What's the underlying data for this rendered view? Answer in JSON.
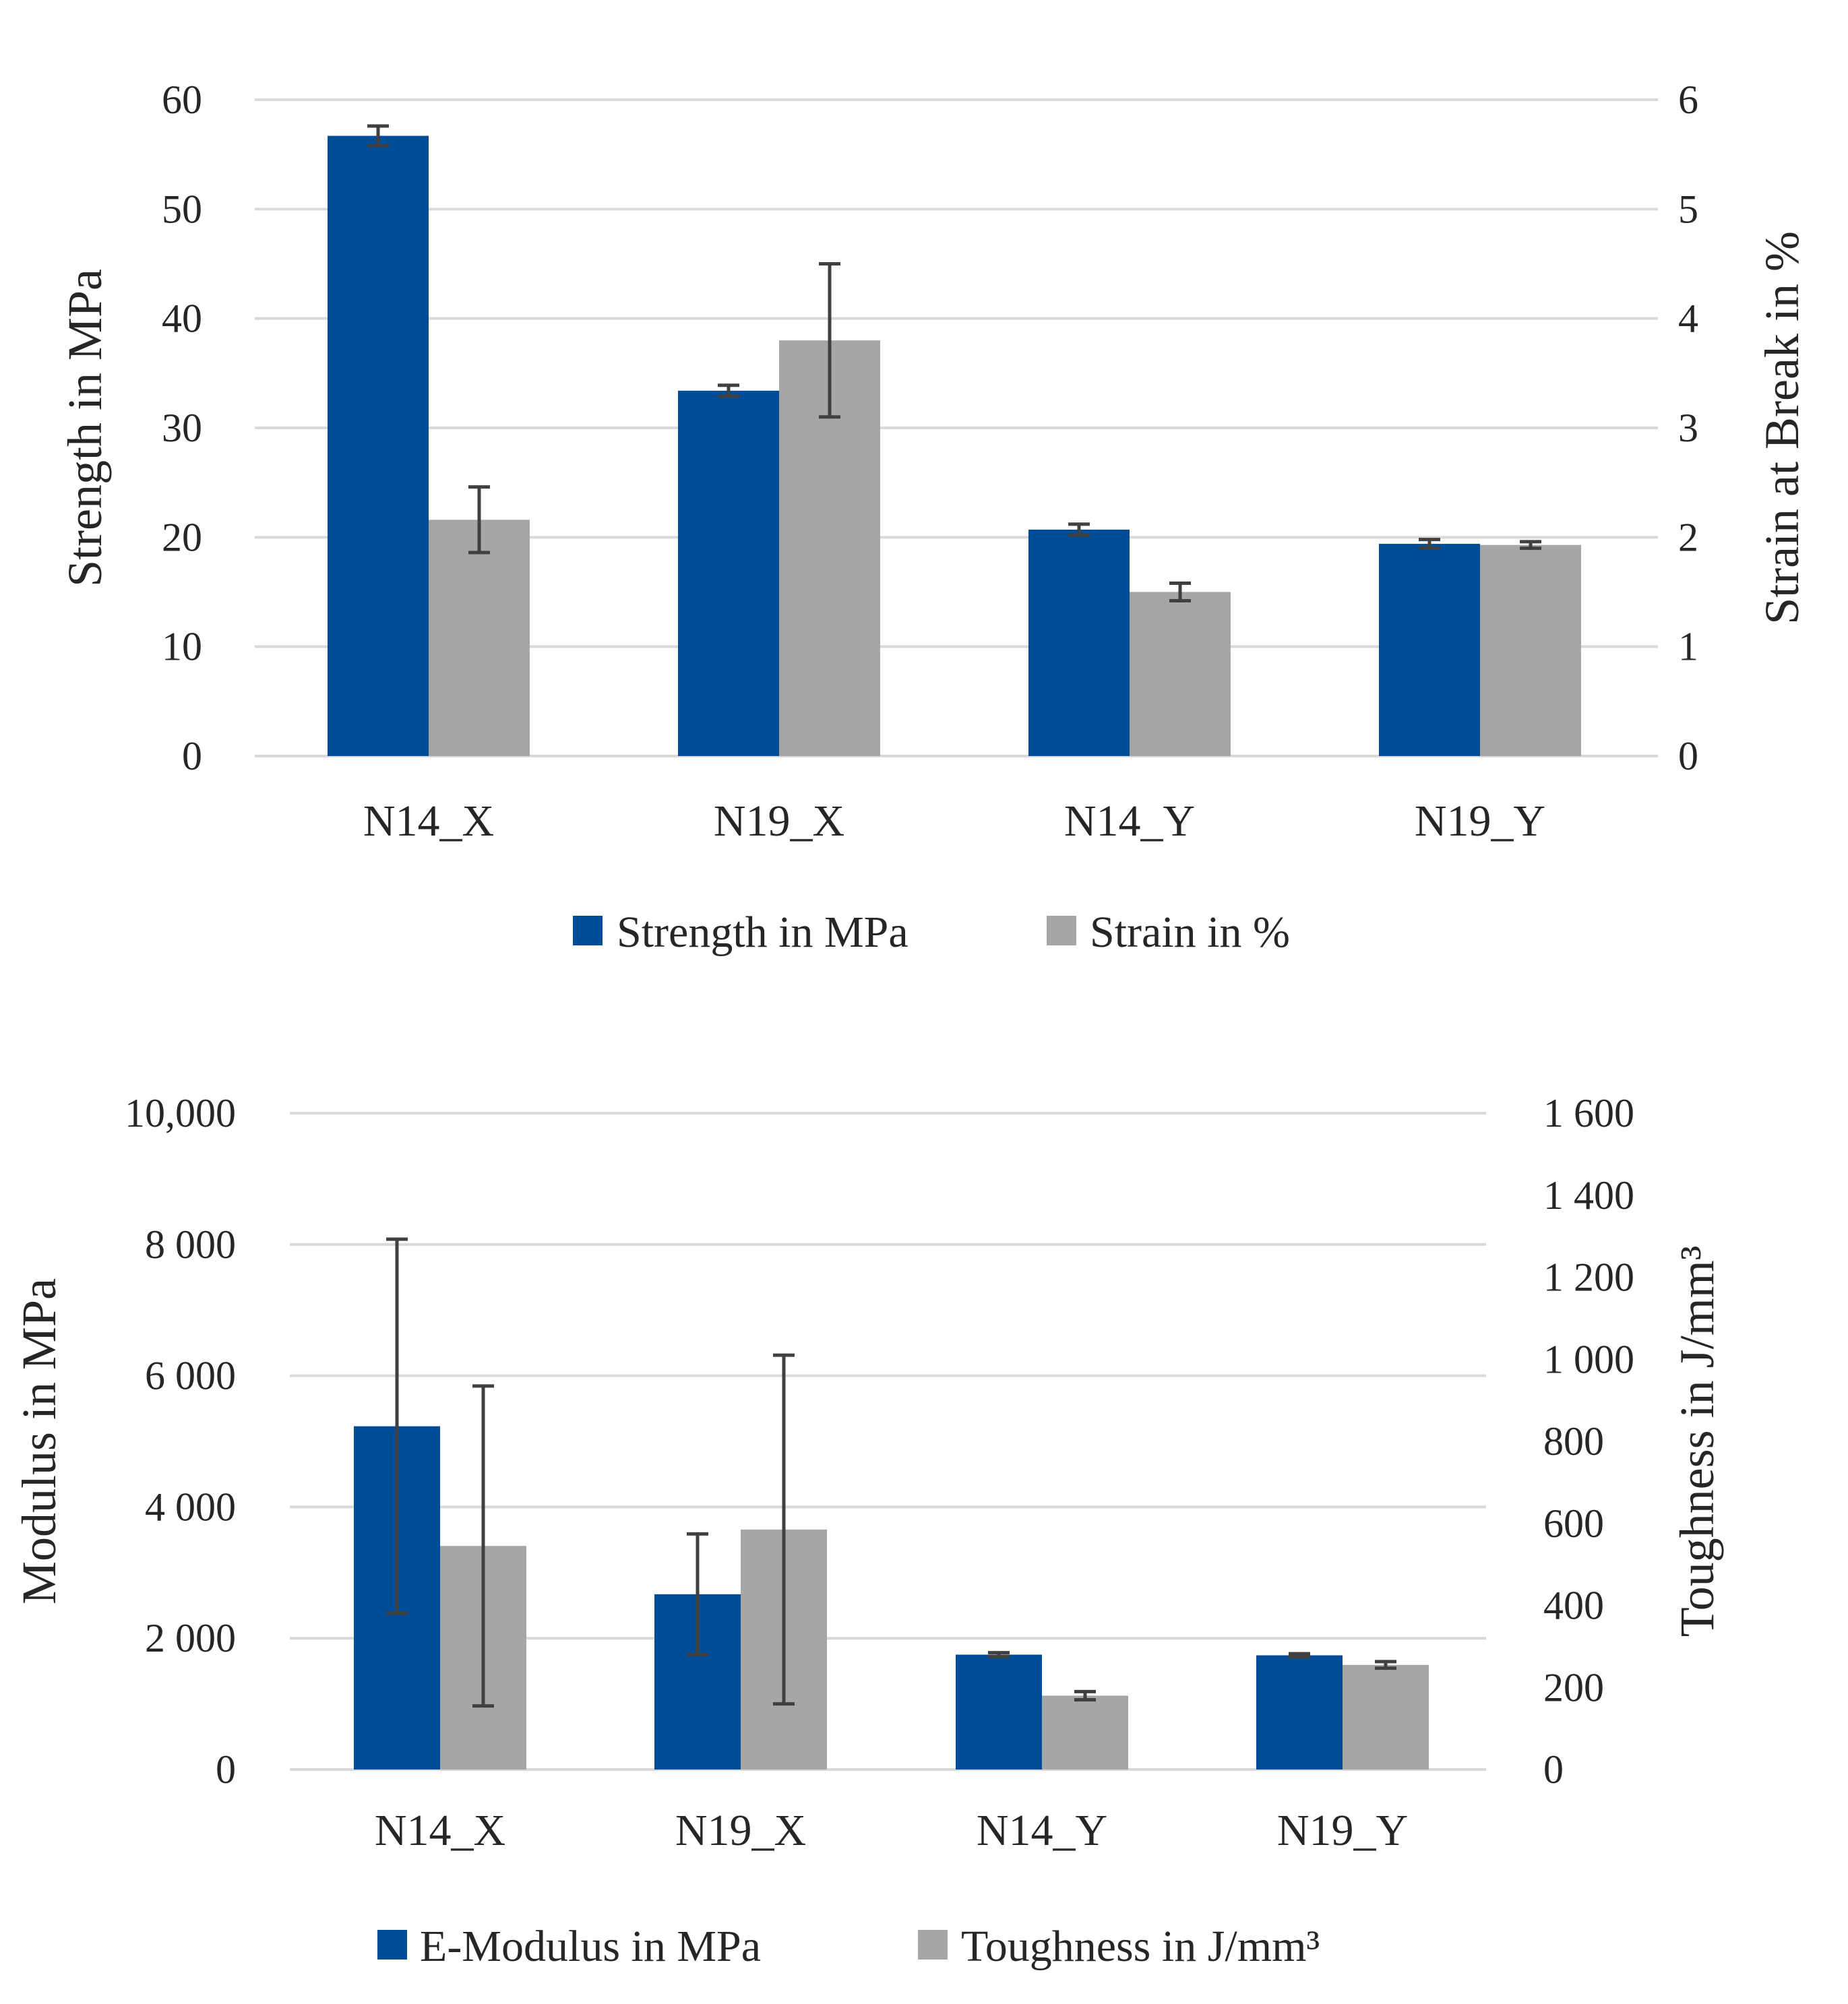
{
  "chart_data": [
    {
      "type": "bar",
      "categories": [
        "N14_X",
        "N19_X",
        "N14_Y",
        "N19_Y"
      ],
      "ylabel": "Strength in MPa",
      "y2label": "Strain at Break in %",
      "ylim": [
        0,
        60
      ],
      "y2lim": [
        0,
        6
      ],
      "yticks": [
        "0",
        "10",
        "20",
        "30",
        "40",
        "50",
        "60"
      ],
      "y2ticks": [
        "0",
        "1",
        "2",
        "3",
        "4",
        "5",
        "6"
      ],
      "grid": true,
      "legend_position": "bottom",
      "colors": {
        "primary": "#004C97",
        "secondary": "#A6A6A6",
        "error": "#404040",
        "grid": "#D9D9D9"
      },
      "series": [
        {
          "name": "Strength in MPa",
          "axis": "left",
          "values": [
            56.7,
            33.4,
            20.7,
            19.4
          ],
          "errors": [
            0.9,
            0.5,
            0.5,
            0.4
          ]
        },
        {
          "name": "Strain in %",
          "axis": "right",
          "values": [
            2.16,
            3.8,
            1.5,
            1.93
          ],
          "errors": [
            0.3,
            0.7,
            0.08,
            0.03
          ]
        }
      ]
    },
    {
      "type": "bar",
      "categories": [
        "N14_X",
        "N19_X",
        "N14_Y",
        "N19_Y"
      ],
      "ylabel": "Modulus in MPa",
      "y2label": "Toughness in J/mm³",
      "ylim": [
        0,
        10000
      ],
      "y2lim": [
        0,
        1600
      ],
      "yticks": [
        "0",
        "2 000",
        "4 000",
        "6 000",
        "8 000",
        "10,000"
      ],
      "y2ticks": [
        "0",
        "200",
        "400",
        "600",
        "800",
        "1 000",
        "1 200",
        "1 400",
        "1 600"
      ],
      "grid": true,
      "legend_position": "bottom",
      "colors": {
        "primary": "#004C97",
        "secondary": "#A6A6A6",
        "error": "#404040",
        "grid": "#D9D9D9"
      },
      "series": [
        {
          "name": "E-Modulus in MPa",
          "axis": "left",
          "values": [
            5230,
            2670,
            1750,
            1740
          ],
          "errors": [
            2850,
            920,
            30,
            25
          ]
        },
        {
          "name": "Toughness in J/mm³",
          "axis": "right",
          "values": [
            545,
            585,
            180,
            255
          ],
          "errors": [
            390,
            425,
            10,
            8
          ]
        }
      ]
    }
  ]
}
